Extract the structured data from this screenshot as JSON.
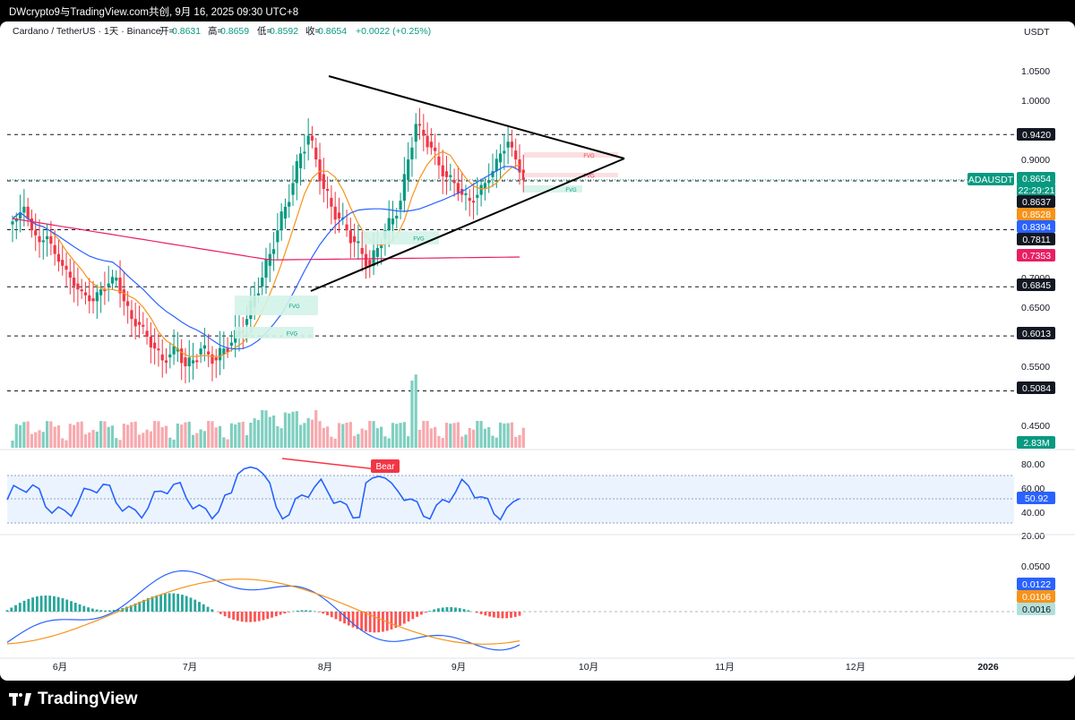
{
  "header": {
    "watermark": "DWcrypto9与TradingView.com共创, 9月 16, 2025 09:30 UTC+8"
  },
  "legend": {
    "pair": "Cardano / TetherUS · 1天 · Binance",
    "open_label": "开=",
    "open": "0.8631",
    "high_label": "高=",
    "high": "0.8659",
    "low_label": "低=",
    "low": "0.8592",
    "close_label": "收=",
    "close": "0.8654",
    "change": "+0.0022 (+0.25%)"
  },
  "price_axis": {
    "currency": "USDT",
    "ticks": [
      "1.0500",
      "1.0000",
      "0.9000",
      "0.7000",
      "0.6500",
      "0.5500",
      "0.4500"
    ],
    "partial_ticks": [
      "1.1000",
      "0.9500",
      "0.8000",
      "0.7500",
      "0.6000",
      "0.5000"
    ],
    "tags": [
      {
        "text": "0.9420",
        "bg": "#131722",
        "fg": "#ffffff"
      },
      {
        "text": "0.8654",
        "bg": "#089981",
        "fg": "#ffffff"
      },
      {
        "text": "22:29:21",
        "bg": "#089981",
        "fg": "#ffffff"
      },
      {
        "text": "0.8637",
        "bg": "#131722",
        "fg": "#ffffff"
      },
      {
        "text": "0.8528",
        "bg": "#f7931a",
        "fg": "#ffffff"
      },
      {
        "text": "0.8394",
        "bg": "#2962ff",
        "fg": "#ffffff"
      },
      {
        "text": "0.7811",
        "bg": "#131722",
        "fg": "#ffffff"
      },
      {
        "text": "0.7353",
        "bg": "#e91e63",
        "fg": "#ffffff"
      },
      {
        "text": "0.6845",
        "bg": "#131722",
        "fg": "#ffffff"
      },
      {
        "text": "0.6013",
        "bg": "#131722",
        "fg": "#ffffff"
      },
      {
        "text": "0.5084",
        "bg": "#131722",
        "fg": "#ffffff"
      },
      {
        "text": "2.83M",
        "bg": "#089981",
        "fg": "#ffffff"
      }
    ],
    "symbol_tag": "ADAUSDT",
    "horizontal_levels": [
      0.942,
      0.8637,
      0.7811,
      0.6845,
      0.6013,
      0.5084
    ]
  },
  "drawings": {
    "fvg_label": "FVG",
    "bear_label": "Bear"
  },
  "rsi": {
    "ticks": [
      "80.00",
      "60.00",
      "40.00",
      "20.00"
    ],
    "value": "50.92"
  },
  "macd": {
    "ticks": [
      "0.0500"
    ],
    "macd": "0.0122",
    "signal": "0.0106",
    "hist": "0.0016"
  },
  "time_axis": [
    "6月",
    "7月",
    "8月",
    "9月",
    "10月",
    "11月",
    "12月",
    "2026"
  ],
  "footer": {
    "brand": "TradingView"
  },
  "chart_data": {
    "type": "candlestick",
    "ylabel": "USDT",
    "ohlc_last": {
      "open": 0.8631,
      "high": 0.8659,
      "low": 0.8592,
      "close": 0.8654
    },
    "close_series_approx": [
      0.8,
      0.82,
      0.78,
      0.76,
      0.77,
      0.74,
      0.72,
      0.7,
      0.68,
      0.67,
      0.66,
      0.68,
      0.69,
      0.7,
      0.66,
      0.63,
      0.62,
      0.6,
      0.58,
      0.56,
      0.57,
      0.58,
      0.55,
      0.56,
      0.58,
      0.57,
      0.56,
      0.58,
      0.59,
      0.61,
      0.63,
      0.67,
      0.7,
      0.74,
      0.78,
      0.82,
      0.86,
      0.91,
      0.94,
      0.9,
      0.85,
      0.82,
      0.8,
      0.78,
      0.76,
      0.74,
      0.72,
      0.75,
      0.78,
      0.8,
      0.83,
      0.9,
      0.96,
      0.94,
      0.92,
      0.89,
      0.87,
      0.86,
      0.84,
      0.83,
      0.84,
      0.86,
      0.88,
      0.91,
      0.93,
      0.9,
      0.865
    ],
    "ema_fast_last": 0.8528,
    "ema_mid_last": 0.8394,
    "ema_slow_last": 0.7353,
    "volume_last": "2.83M",
    "rsi_last": 50.92,
    "macd_last": {
      "macd": 0.0122,
      "signal": 0.0106,
      "hist": 0.0016
    }
  },
  "colors": {
    "up": "#089981",
    "down": "#f23645",
    "ema_fast": "#f7931a",
    "ema_mid": "#2962ff",
    "ema_slow": "#e91e63",
    "rsi": "#2962ff"
  }
}
